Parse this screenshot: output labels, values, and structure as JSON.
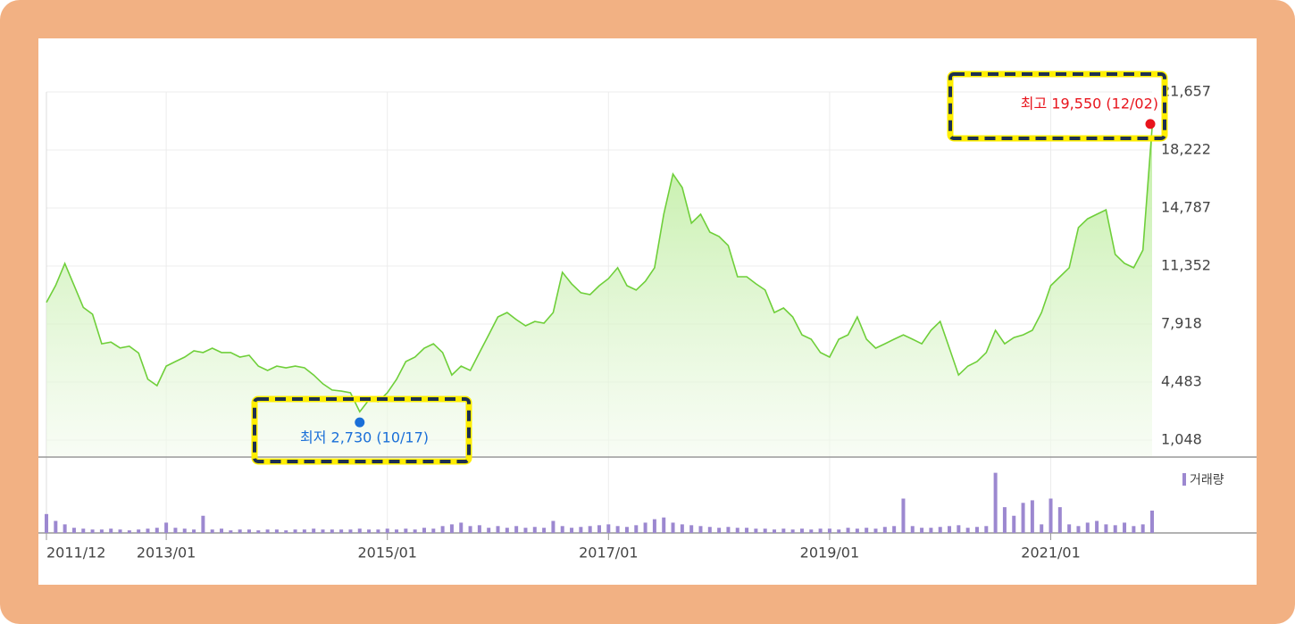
{
  "chart_data": {
    "type": "line",
    "x": [
      "2011/12",
      "2012/01",
      "2012/02",
      "2012/03",
      "2012/04",
      "2012/05",
      "2012/06",
      "2012/07",
      "2012/08",
      "2012/09",
      "2012/10",
      "2012/11",
      "2012/12",
      "2013/01",
      "2013/02",
      "2013/03",
      "2013/04",
      "2013/05",
      "2013/06",
      "2013/07",
      "2013/08",
      "2013/09",
      "2013/10",
      "2013/11",
      "2013/12",
      "2014/01",
      "2014/02",
      "2014/03",
      "2014/04",
      "2014/05",
      "2014/06",
      "2014/07",
      "2014/08",
      "2014/09",
      "2014/10",
      "2014/11",
      "2014/12",
      "2015/01",
      "2015/02",
      "2015/03",
      "2015/04",
      "2015/05",
      "2015/06",
      "2015/07",
      "2015/08",
      "2015/09",
      "2015/10",
      "2015/11",
      "2015/12",
      "2016/01",
      "2016/02",
      "2016/03",
      "2016/04",
      "2016/05",
      "2016/06",
      "2016/07",
      "2016/08",
      "2016/09",
      "2016/10",
      "2016/11",
      "2016/12",
      "2017/01",
      "2017/02",
      "2017/03",
      "2017/04",
      "2017/05",
      "2017/06",
      "2017/07",
      "2017/08",
      "2017/09",
      "2017/10",
      "2017/11",
      "2017/12",
      "2018/01",
      "2018/02",
      "2018/03",
      "2018/04",
      "2018/05",
      "2018/06",
      "2018/07",
      "2018/08",
      "2018/09",
      "2018/10",
      "2018/11",
      "2018/12",
      "2019/01",
      "2019/02",
      "2019/03",
      "2019/04",
      "2019/05",
      "2019/06",
      "2019/07",
      "2019/08",
      "2019/09",
      "2019/10",
      "2019/11",
      "2019/12",
      "2020/01",
      "2020/02",
      "2020/03",
      "2020/04",
      "2020/05",
      "2020/06",
      "2020/07",
      "2020/08",
      "2020/09",
      "2020/10",
      "2020/11",
      "2020/12",
      "2021/01",
      "2021/02",
      "2021/03",
      "2021/04",
      "2021/05",
      "2021/06",
      "2021/07",
      "2021/08",
      "2021/09",
      "2021/10",
      "2021/11",
      "2021/12"
    ],
    "series": [
      {
        "color": "#6fcf3a",
        "values": [
          9200,
          10200,
          11500,
          10200,
          8900,
          8500,
          6750,
          6850,
          6500,
          6600,
          6200,
          4650,
          4270,
          5430,
          5700,
          5960,
          6330,
          6230,
          6490,
          6230,
          6230,
          5960,
          6070,
          5430,
          5170,
          5430,
          5330,
          5430,
          5330,
          4900,
          4380,
          4010,
          3950,
          3850,
          2730,
          3430,
          3320,
          3850,
          4640,
          5700,
          5960,
          6490,
          6750,
          6230,
          4900,
          5430,
          5170,
          6230,
          7280,
          8340,
          8600,
          8180,
          7810,
          8070,
          7970,
          8600,
          10980,
          10300,
          9770,
          9660,
          10190,
          10610,
          11250,
          10190,
          9930,
          10450,
          11250,
          14420,
          16800,
          16000,
          13890,
          14420,
          13360,
          13100,
          12570,
          10720,
          10720,
          10300,
          9930,
          8600,
          8870,
          8340,
          7280,
          7020,
          6230,
          5960,
          7020,
          7280,
          8340,
          7020,
          6490,
          6750,
          7020,
          7280,
          7020,
          6750,
          7550,
          8070,
          6490,
          4900,
          5430,
          5700,
          6230,
          7550,
          6750,
          7120,
          7280,
          7550,
          8600,
          10190,
          10720,
          11250,
          13630,
          14150,
          14420,
          14680,
          12040,
          11510,
          11250,
          12300,
          19550
        ]
      }
    ],
    "volume": {
      "name": "거래량",
      "color": "#9c88d0",
      "ylim": [
        0,
        80
      ],
      "values": [
        22,
        14,
        10,
        6,
        5,
        4,
        4,
        5,
        4,
        3,
        4,
        5,
        6,
        12,
        6,
        5,
        4,
        20,
        4,
        5,
        3,
        4,
        4,
        3,
        4,
        4,
        3,
        4,
        4,
        5,
        4,
        4,
        4,
        4,
        5,
        4,
        4,
        5,
        4,
        5,
        4,
        6,
        5,
        8,
        10,
        12,
        8,
        9,
        6,
        8,
        6,
        8,
        6,
        7,
        6,
        14,
        8,
        6,
        7,
        8,
        9,
        10,
        8,
        7,
        9,
        12,
        16,
        18,
        12,
        10,
        9,
        8,
        7,
        6,
        7,
        6,
        6,
        5,
        5,
        4,
        5,
        4,
        5,
        4,
        5,
        5,
        4,
        6,
        5,
        6,
        5,
        7,
        8,
        40,
        8,
        6,
        6,
        7,
        8,
        9,
        6,
        7,
        8,
        70,
        30,
        20,
        35,
        38,
        10,
        40,
        30,
        10,
        8,
        12,
        14,
        10,
        9,
        12,
        8,
        10,
        26
      ]
    },
    "ylim": [
      1048,
      21657
    ],
    "yticks": [
      {
        "value": 1048,
        "label": "1,048"
      },
      {
        "value": 4483,
        "label": "4,483"
      },
      {
        "value": 7918,
        "label": "7,918"
      },
      {
        "value": 11352,
        "label": "11,352"
      },
      {
        "value": 14787,
        "label": "14,787"
      },
      {
        "value": 18222,
        "label": "18,222"
      },
      {
        "value": 21657,
        "label": "21,657"
      }
    ],
    "xticks": [
      "2011/12",
      "2013/01",
      "2015/01",
      "2017/01",
      "2019/01",
      "2021/01"
    ],
    "grid": true,
    "annotations": [
      {
        "text": "최고 19,550 (12/02)",
        "x": "2021/12",
        "value": 19550,
        "color": "#e8141c"
      },
      {
        "text": "최저 2,730 (10/17)",
        "x": "2014/10",
        "value": 2730,
        "color": "#1a6fd8"
      }
    ]
  }
}
